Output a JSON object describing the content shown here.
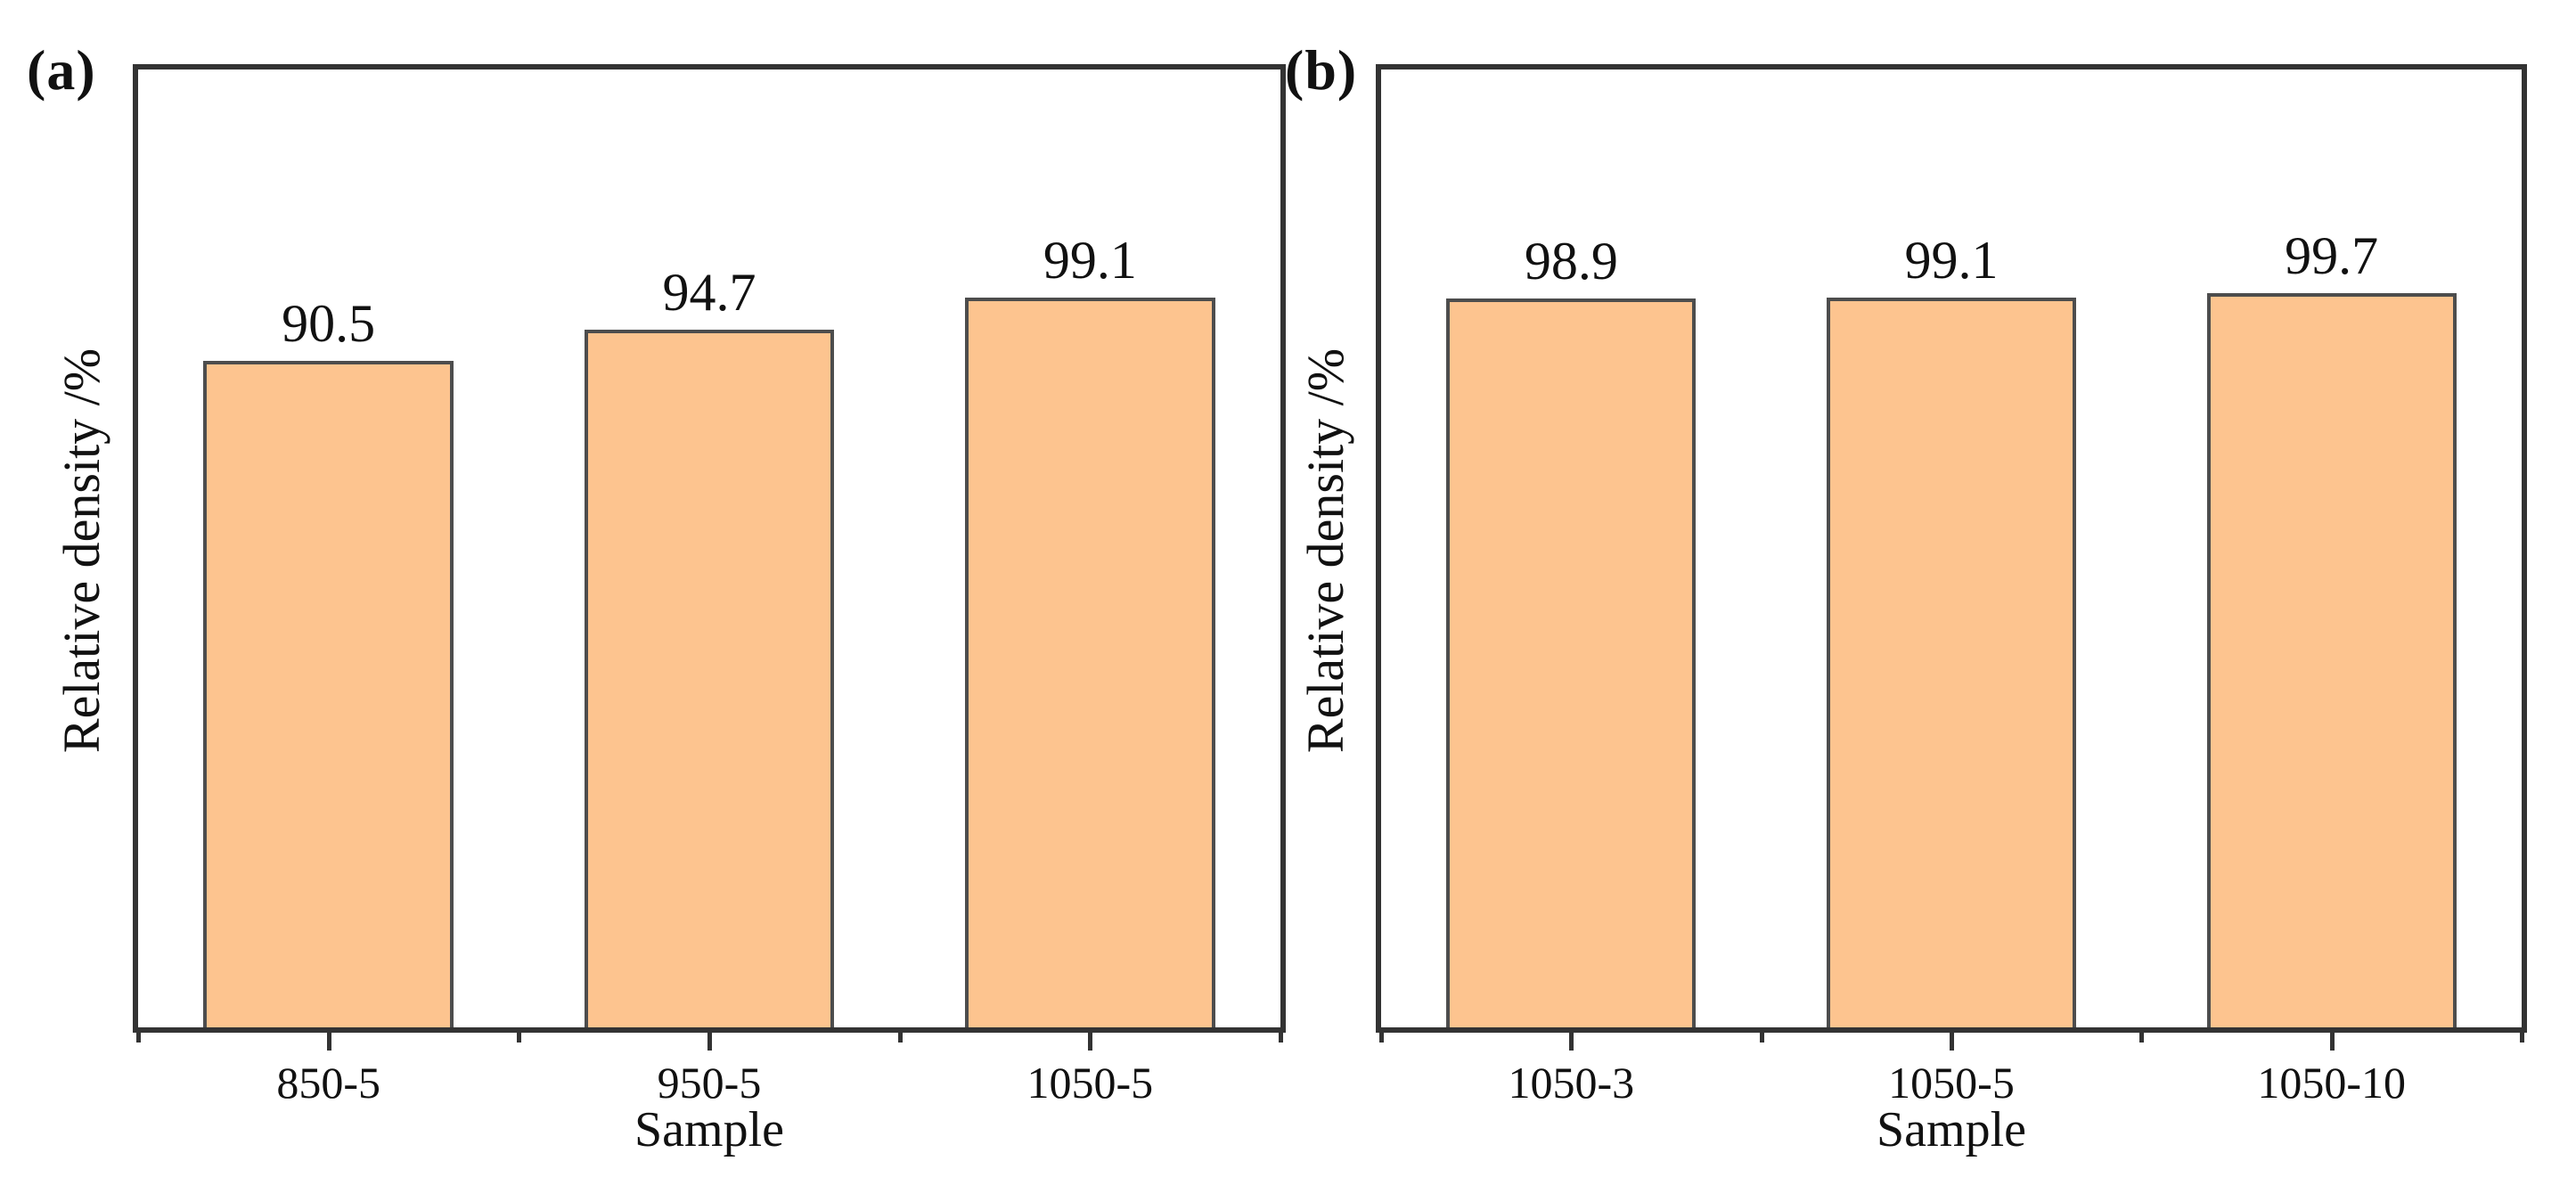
{
  "figure": {
    "background_color": "#ffffff",
    "text_color": "#111111",
    "axis_color": "#333333"
  },
  "chart_data": [
    {
      "type": "bar",
      "panel_label": "(a)",
      "title": "",
      "xlabel": "Sample",
      "ylabel": "Relative density /%",
      "categories": [
        "850-5",
        "950-5",
        "1050-5"
      ],
      "values": [
        90.5,
        94.7,
        99.1
      ],
      "value_labels": [
        "90.5",
        "94.7",
        "99.1"
      ],
      "ylim": [
        0,
        130
      ],
      "yticks": "none",
      "grid": false,
      "legend": "none",
      "bar_color": "#fdc48f",
      "bar_edge_color": "#4d4d4d"
    },
    {
      "type": "bar",
      "panel_label": "(b)",
      "title": "",
      "xlabel": "Sample",
      "ylabel": "Relative density /%",
      "categories": [
        "1050-3",
        "1050-5",
        "1050-10"
      ],
      "values": [
        98.9,
        99.1,
        99.7
      ],
      "value_labels": [
        "98.9",
        "99.1",
        "99.7"
      ],
      "ylim": [
        0,
        130
      ],
      "yticks": "none",
      "grid": false,
      "legend": "none",
      "bar_color": "#fdc48f",
      "bar_edge_color": "#4d4d4d"
    }
  ]
}
